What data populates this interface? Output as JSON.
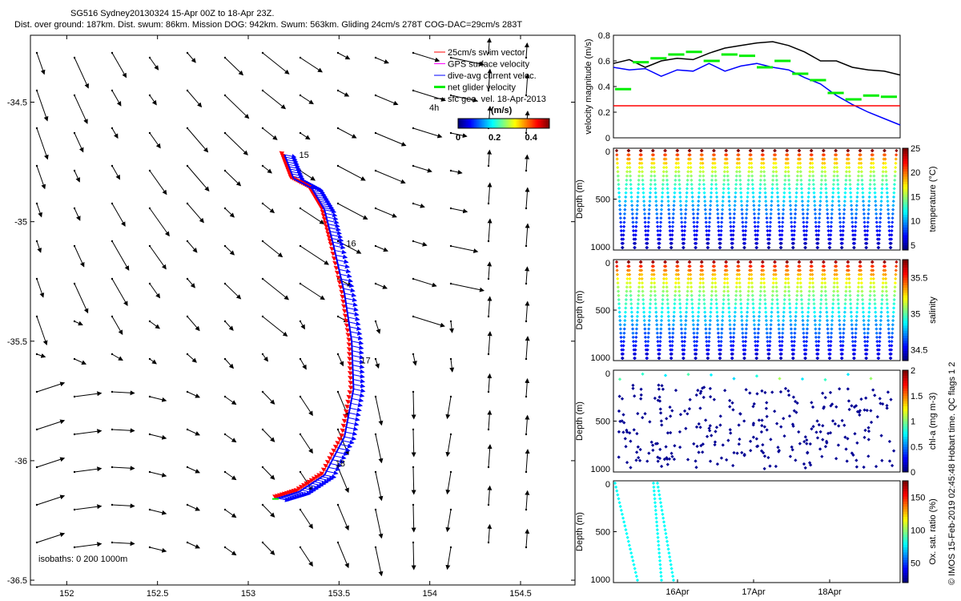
{
  "header": {
    "line1": "SG516 Sydney20130324 15-Apr 00Z to 18-Apr 23Z.",
    "line2": "Dist. over ground: 187km. Dist. swum: 86km. Mission DOG: 942km. Swum: 563km. Gliding 24cm/s 278T COG-DAC=29cm/s 283T"
  },
  "credit": "© IMOS 15-Feb-2019 02:45:48 Hobart time. QC flags 1  2",
  "colors": {
    "swim": "#ff0000",
    "gps": "#ff00ff",
    "dac": "#0000ff",
    "net": "#00ee00",
    "geo": "#000000"
  },
  "chart_data": [
    {
      "type": "scatter",
      "name": "map",
      "xlim": [
        151.8,
        154.8
      ],
      "ylim": [
        -36.52,
        -34.22
      ],
      "xticks": [
        "152",
        "152.5",
        "153",
        "153.5",
        "154",
        "154.5"
      ],
      "xtick_values": [
        152,
        152.5,
        153,
        153.5,
        154,
        154.5
      ],
      "yticks": [
        "-34.5",
        "-35",
        "-35.5",
        "-36",
        "-36.5"
      ],
      "ytick_values": [
        -34.5,
        -35,
        -35.5,
        -36,
        -36.5
      ],
      "day_labels": [
        {
          "text": "15",
          "lon": 153.28,
          "lat": -34.72
        },
        {
          "text": "16",
          "lon": 153.54,
          "lat": -35.09
        },
        {
          "text": "17",
          "lon": 153.62,
          "lat": -35.58
        },
        {
          "text": "18",
          "lon": 153.48,
          "lat": -36.01
        }
      ],
      "track": [
        [
          153.2,
          -34.72
        ],
        [
          153.25,
          -34.82
        ],
        [
          153.35,
          -34.86
        ],
        [
          153.42,
          -34.95
        ],
        [
          153.47,
          -35.1
        ],
        [
          153.53,
          -35.3
        ],
        [
          153.57,
          -35.5
        ],
        [
          153.58,
          -35.7
        ],
        [
          153.53,
          -35.9
        ],
        [
          153.42,
          -36.06
        ],
        [
          153.28,
          -36.13
        ],
        [
          153.15,
          -36.16
        ]
      ],
      "legend": [
        "25cm/s swim vector",
        "GPS surface velocity",
        "dive-avg current veloc.",
        "net glider velocity",
        "sfc geo. vel. 18-Apr-2013"
      ],
      "scale_label": "4h",
      "colorbar": {
        "label": "(m/s)",
        "ticks": [
          "0",
          "0.2",
          "0.4"
        ],
        "tick_values": [
          0,
          0.2,
          0.4
        ],
        "range": [
          0,
          0.5
        ]
      },
      "isobaths": "isobaths: 0   200  1000m"
    },
    {
      "type": "line",
      "name": "velocity",
      "ylabel": "velocity magnitude (m/s)",
      "ylim": [
        0,
        0.8
      ],
      "yticks": [
        "0",
        "0.2",
        "0.4",
        "0.6",
        "0.8"
      ],
      "ytick_values": [
        0,
        0.2,
        0.4,
        0.6,
        0.8
      ],
      "series": [
        {
          "color": "#000000",
          "values": [
            0.58,
            0.61,
            0.55,
            0.6,
            0.62,
            0.61,
            0.66,
            0.7,
            0.72,
            0.74,
            0.75,
            0.72,
            0.67,
            0.6,
            0.6,
            0.55,
            0.53,
            0.52,
            0.49
          ]
        },
        {
          "color": "#0000ff",
          "values": [
            0.55,
            0.53,
            0.54,
            0.48,
            0.53,
            0.52,
            0.58,
            0.52,
            0.56,
            0.58,
            0.55,
            0.53,
            0.47,
            0.42,
            0.33,
            0.26,
            0.2,
            0.15,
            0.1
          ]
        },
        {
          "color": "#ff0000",
          "values": [
            0.25,
            0.25,
            0.25,
            0.25,
            0.25,
            0.25,
            0.25,
            0.25,
            0.25,
            0.25,
            0.25,
            0.25,
            0.25,
            0.25,
            0.25,
            0.25,
            0.25,
            0.25,
            0.25
          ]
        }
      ],
      "net_segments": [
        0.38,
        0.59,
        0.62,
        0.65,
        0.67,
        0.6,
        0.65,
        0.64,
        0.55,
        0.6,
        0.5,
        0.45,
        0.35,
        0.3,
        0.33,
        0.32
      ]
    },
    {
      "type": "heatmap",
      "name": "temperature",
      "ylabel": "Depth (m)",
      "yticks": [
        "0",
        "500",
        "1000"
      ],
      "colorbar": {
        "label": "temperature (°C)",
        "ticks": [
          "5",
          "10",
          "15",
          "20",
          "25"
        ],
        "tick_values": [
          5,
          10,
          15,
          20,
          25
        ],
        "range": [
          4,
          25
        ]
      }
    },
    {
      "type": "heatmap",
      "name": "salinity",
      "ylabel": "Depth (m)",
      "yticks": [
        "0",
        "500",
        "1000"
      ],
      "colorbar": {
        "label": "salinity",
        "ticks": [
          "34.5",
          "35",
          "35.5"
        ],
        "tick_values": [
          34.5,
          35,
          35.5
        ],
        "range": [
          34.35,
          35.75
        ]
      }
    },
    {
      "type": "scatter",
      "name": "chlorophyll",
      "ylabel": "Depth (m)",
      "yticks": [
        "0",
        "500",
        "1000"
      ],
      "colorbar": {
        "label": "chl-a (mg m-3)",
        "ticks": [
          "0",
          "0.5",
          "1",
          "1.5",
          "2"
        ],
        "tick_values": [
          0,
          0.5,
          1,
          1.5,
          2
        ],
        "range": [
          0,
          2
        ]
      }
    },
    {
      "type": "scatter",
      "name": "oxygen",
      "ylabel": "Depth (m)",
      "yticks": [
        "0",
        "500",
        "1000"
      ],
      "xticks": [
        "16Apr",
        "17Apr",
        "18Apr"
      ],
      "colorbar": {
        "label": "Ox. sat. ratio (%)",
        "ticks": [
          "50",
          "100",
          "150"
        ],
        "tick_values": [
          50,
          100,
          150
        ],
        "range": [
          20,
          175
        ]
      }
    }
  ]
}
